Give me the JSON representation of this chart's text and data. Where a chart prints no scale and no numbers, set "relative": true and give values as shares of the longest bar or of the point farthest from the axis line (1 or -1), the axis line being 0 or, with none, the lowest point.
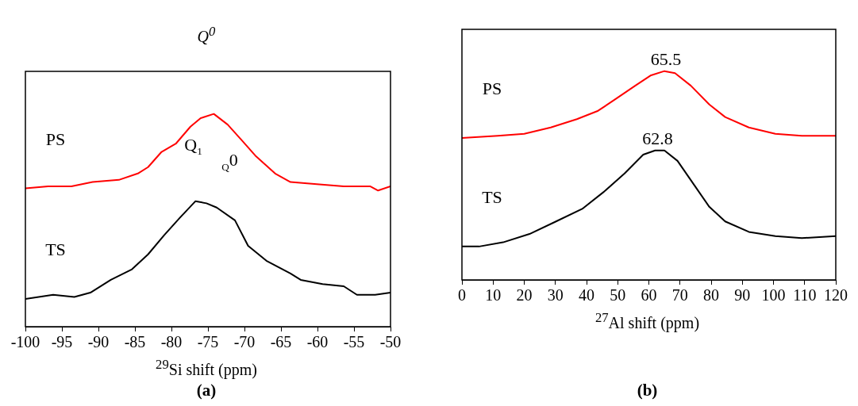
{
  "chart_data": [
    {
      "type": "line",
      "title": "Q$^{0}$",
      "xlabel": "$^{29}$Si shift (ppm)",
      "relative": true,
      "marker": "none",
      "xlim": [
        -100,
        -50
      ],
      "xticks": [
        -100,
        -95,
        -90,
        -85,
        -80,
        -75,
        -70,
        -65,
        -60,
        -55,
        -50
      ],
      "series": [
        {
          "name": "PS",
          "color": "#ff0000",
          "x": [
            -100,
            -96.9,
            -93.7,
            -90.8,
            -87.2,
            -84.6,
            -83.2,
            -81.4,
            -79.4,
            -77.4,
            -76.0,
            -74.2,
            -72.3,
            -70.2,
            -68.4,
            -65.8,
            -63.7,
            -60.1,
            -56.4,
            -52.8,
            -51.7,
            -50
          ],
          "values": [
            0.65,
            0.66,
            0.66,
            0.68,
            0.69,
            0.72,
            0.75,
            0.82,
            0.86,
            0.94,
            0.98,
            1.0,
            0.95,
            0.87,
            0.8,
            0.72,
            0.68,
            0.67,
            0.66,
            0.66,
            0.64,
            0.66
          ]
        },
        {
          "name": "TS",
          "color": "#000000",
          "x": [
            -100,
            -96.2,
            -93.3,
            -91.1,
            -88.3,
            -85.4,
            -83.2,
            -81.0,
            -78.9,
            -76.7,
            -75.2,
            -73.8,
            -71.3,
            -69.5,
            -67.0,
            -63.7,
            -62.3,
            -59.3,
            -56.4,
            -54.6,
            -52.1,
            -50
          ],
          "values": [
            0.13,
            0.15,
            0.14,
            0.16,
            0.22,
            0.27,
            0.34,
            0.43,
            0.51,
            0.59,
            0.58,
            0.56,
            0.5,
            0.38,
            0.31,
            0.25,
            0.22,
            0.2,
            0.19,
            0.15,
            0.15,
            0.16
          ]
        }
      ],
      "annotations": [
        "Q$_{1}$",
        "$_{Q}$0",
        "(a)"
      ]
    },
    {
      "type": "line",
      "xlabel": "$^{27}$Al shift (ppm)",
      "relative": true,
      "marker": "none",
      "xlim": [
        0,
        120
      ],
      "xticks": [
        0,
        10,
        20,
        30,
        40,
        50,
        60,
        70,
        80,
        90,
        100,
        110,
        120
      ],
      "series": [
        {
          "name": "PS",
          "color": "#ff0000",
          "x": [
            0,
            11.5,
            20.0,
            28.5,
            36.9,
            43.7,
            49.7,
            55.6,
            60.7,
            65.0,
            68.4,
            73.5,
            79.4,
            84.5,
            92.1,
            100.6,
            109.1,
            120
          ],
          "values": [
            0.68,
            0.69,
            0.7,
            0.73,
            0.77,
            0.81,
            0.87,
            0.93,
            0.98,
            1.0,
            0.99,
            0.93,
            0.84,
            0.78,
            0.73,
            0.7,
            0.69,
            0.69
          ]
        },
        {
          "name": "TS",
          "color": "#000000",
          "x": [
            0,
            5.5,
            13.2,
            21.7,
            30.2,
            38.6,
            45.4,
            52.2,
            58.2,
            62.0,
            65.0,
            69.2,
            74.3,
            79.4,
            84.5,
            92.1,
            100.6,
            109.1,
            120
          ],
          "values": [
            0.16,
            0.16,
            0.18,
            0.22,
            0.28,
            0.34,
            0.42,
            0.51,
            0.6,
            0.62,
            0.62,
            0.57,
            0.46,
            0.35,
            0.28,
            0.23,
            0.21,
            0.2,
            0.21
          ]
        }
      ],
      "annotations": [
        {
          "text": "65.5",
          "x": 65.5,
          "y": 1.0
        },
        {
          "text": "62.8",
          "x": 62.8,
          "y": 0.62
        },
        "(b)"
      ]
    }
  ]
}
